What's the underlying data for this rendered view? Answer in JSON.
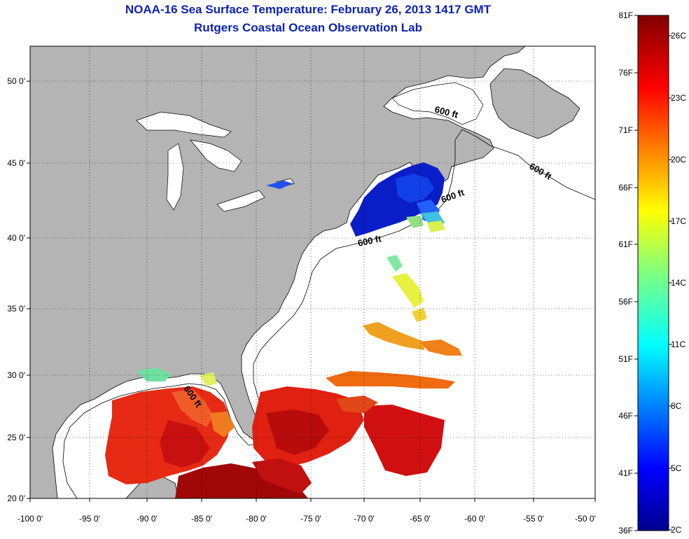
{
  "title": "NOAA-16 Sea Surface Temperature:  February 26, 2013 1417 GMT",
  "subtitle": "Rutgers Coastal Ocean Observation Lab",
  "lon_ticks": [
    "-100 0'",
    "-95 0'",
    "-90 0'",
    "-85 0'",
    "-80 0'",
    "-75 0'",
    "-70 0'",
    "-65 0'",
    "-60 0'",
    "-55 0'",
    "-50 0'"
  ],
  "lat_ticks": [
    "20 0'",
    "25 0'",
    "30 0'",
    "35 0'",
    "40 0'",
    "45 0'",
    "50 0'"
  ],
  "isobath_labels": [
    "600 ft",
    "600 ft",
    "600 ft",
    "600 ft",
    "600 ft"
  ],
  "colorbar": {
    "fahrenheit": [
      "81F",
      "76F",
      "71F",
      "66F",
      "61F",
      "56F",
      "51F",
      "46F",
      "41F",
      "36F"
    ],
    "celsius": [
      "26C",
      "23C",
      "20C",
      "17C",
      "14C",
      "11C",
      "8C",
      "5C",
      "2C"
    ]
  },
  "colors": {
    "land": "#b4b4b4",
    "ocean": "#ffffff",
    "title": "#0c22b4",
    "grid": "#000000"
  }
}
